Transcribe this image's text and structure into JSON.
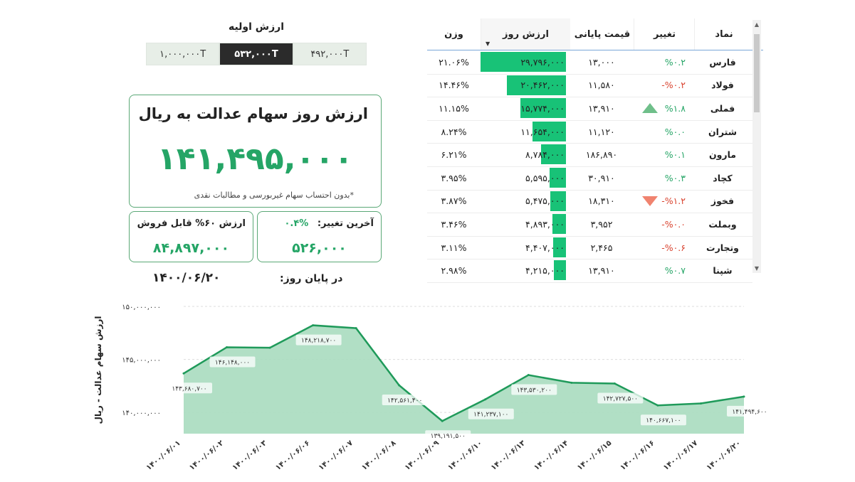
{
  "initial_value": {
    "title": "ارزش اولیه",
    "options": [
      "۱,۰۰۰,۰۰۰T",
      "۵۳۲,۰۰۰T",
      "۴۹۲,۰۰۰T"
    ],
    "selected_index": 1
  },
  "summary": {
    "title": "ارزش روز سهام عدالت به ریال",
    "value": "۱۴۱,۴۹۵,۰۰۰",
    "note": "*بدون احتساب سهام غیربورسی و مطالبات نقدی",
    "sellable_label": "ارزش ۶۰% قابل فروش",
    "sellable_value": "۸۴,۸۹۷,۰۰۰",
    "last_change_label": "آخرین تغییر:",
    "last_change_pct": "%۰.۴",
    "last_change_value": "۵۲۶,۰۰۰",
    "end_of_day_label": "در پایان روز:",
    "date": "۱۴۰۰/۰۶/۲۰"
  },
  "table": {
    "headers": {
      "symbol": "نماد",
      "change": "تغییر",
      "close_price": "قیمت پایانی",
      "day_value": "ارزش روز",
      "weight": "وزن"
    },
    "rows": [
      {
        "symbol": "فارس",
        "change": "%۰.۲",
        "dir": "pos",
        "price": "۱۳,۰۰۰",
        "value": "۲۹,۷۹۶,۰۰۰",
        "weight": "۲۱.۰۶%",
        "frac": 1.0,
        "arrow": ""
      },
      {
        "symbol": "فولاد",
        "change": "-%۰.۲",
        "dir": "neg",
        "price": "۱۱,۵۸۰",
        "value": "۲۰,۴۶۲,۰۰۰",
        "weight": "۱۴.۴۶%",
        "frac": 0.69,
        "arrow": ""
      },
      {
        "symbol": "فملی",
        "change": "%۱.۸",
        "dir": "pos",
        "price": "۱۳,۹۱۰",
        "value": "۱۵,۷۷۴,۰۰۰",
        "weight": "۱۱.۱۵%",
        "frac": 0.53,
        "arrow": "up"
      },
      {
        "symbol": "شتران",
        "change": "%۰.۰",
        "dir": "zero",
        "price": "۱۱,۱۲۰",
        "value": "۱۱,۶۵۴,۰۰۰",
        "weight": "۸.۲۴%",
        "frac": 0.39,
        "arrow": ""
      },
      {
        "symbol": "مارون",
        "change": "%۰.۱",
        "dir": "pos",
        "price": "۱۸۶,۸۹۰",
        "value": "۸,۷۸۴,۰۰۰",
        "weight": "۶.۲۱%",
        "frac": 0.29,
        "arrow": ""
      },
      {
        "symbol": "کچاد",
        "change": "%۰.۳",
        "dir": "pos",
        "price": "۳۰,۹۱۰",
        "value": "۵,۵۹۵,۰۰۰",
        "weight": "۳.۹۵%",
        "frac": 0.19,
        "arrow": ""
      },
      {
        "symbol": "فخوز",
        "change": "-%۱.۲",
        "dir": "neg",
        "price": "۱۸,۳۱۰",
        "value": "۵,۴۷۵,۰۰۰",
        "weight": "۳.۸۷%",
        "frac": 0.18,
        "arrow": "down"
      },
      {
        "symbol": "وبملت",
        "change": "-%۰.۰",
        "dir": "neg",
        "price": "۳,۹۵۲",
        "value": "۴,۸۹۳,۰۰۰",
        "weight": "۳.۴۶%",
        "frac": 0.16,
        "arrow": ""
      },
      {
        "symbol": "وتجارت",
        "change": "-%۰.۶",
        "dir": "neg",
        "price": "۲,۴۶۵",
        "value": "۴,۴۰۷,۰۰۰",
        "weight": "۳.۱۱%",
        "frac": 0.15,
        "arrow": ""
      },
      {
        "symbol": "شپنا",
        "change": "%۰.۷",
        "dir": "pos",
        "price": "۱۳,۹۱۰",
        "value": "۴,۲۱۵,۰۰۰",
        "weight": "۲.۹۸%",
        "frac": 0.14,
        "arrow": ""
      }
    ]
  },
  "colors": {
    "green": "#25a566",
    "red": "#d9422e",
    "bar": "#18c277",
    "area": "#a9dcbf",
    "line": "#1f9a5a"
  },
  "chart_data": {
    "type": "area",
    "ylabel": "ارزش سهام عدالت - ریال",
    "ylim": [
      138000000,
      150000000
    ],
    "yticks": [
      140000000,
      145000000,
      150000000
    ],
    "ytick_labels": [
      "۱۴۰,۰۰۰,۰۰۰",
      "۱۴۵,۰۰۰,۰۰۰",
      "۱۵۰,۰۰۰,۰۰۰"
    ],
    "x": [
      "۱۴۰۰/۰۶/۰۱",
      "۱۴۰۰/۰۶/۰۲",
      "۱۴۰۰/۰۶/۰۳",
      "۱۴۰۰/۰۶/۰۶",
      "۱۴۰۰/۰۶/۰۷",
      "۱۴۰۰/۰۶/۰۸",
      "۱۴۰۰/۰۶/۰۹",
      "۱۴۰۰/۰۶/۱۰",
      "۱۴۰۰/۰۶/۱۳",
      "۱۴۰۰/۰۶/۱۴",
      "۱۴۰۰/۰۶/۱۵",
      "۱۴۰۰/۰۶/۱۶",
      "۱۴۰۰/۰۶/۱۷",
      "۱۴۰۰/۰۶/۲۰"
    ],
    "values": [
      143680700,
      146148000,
      146100000,
      148218700,
      147950000,
      142561400,
      139191500,
      141237100,
      143530200,
      142800000,
      142727500,
      140667100,
      140850000,
      141494600
    ],
    "labels": [
      "۱۴۳,۶۸۰,۷۰۰",
      "۱۴۶,۱۴۸,۰۰۰",
      "",
      "۱۴۸,۲۱۸,۷۰۰",
      "",
      "۱۴۲,۵۶۱,۴۰۰",
      "۱۳۹,۱۹۱,۵۰۰",
      "۱۴۱,۲۳۷,۱۰۰",
      "۱۴۳,۵۳۰,۲۰۰",
      "",
      "۱۴۲,۷۲۷,۵۰۰",
      "۱۴۰,۶۶۷,۱۰۰",
      "",
      "۱۴۱,۴۹۴,۶۰۰"
    ],
    "grid": true
  }
}
